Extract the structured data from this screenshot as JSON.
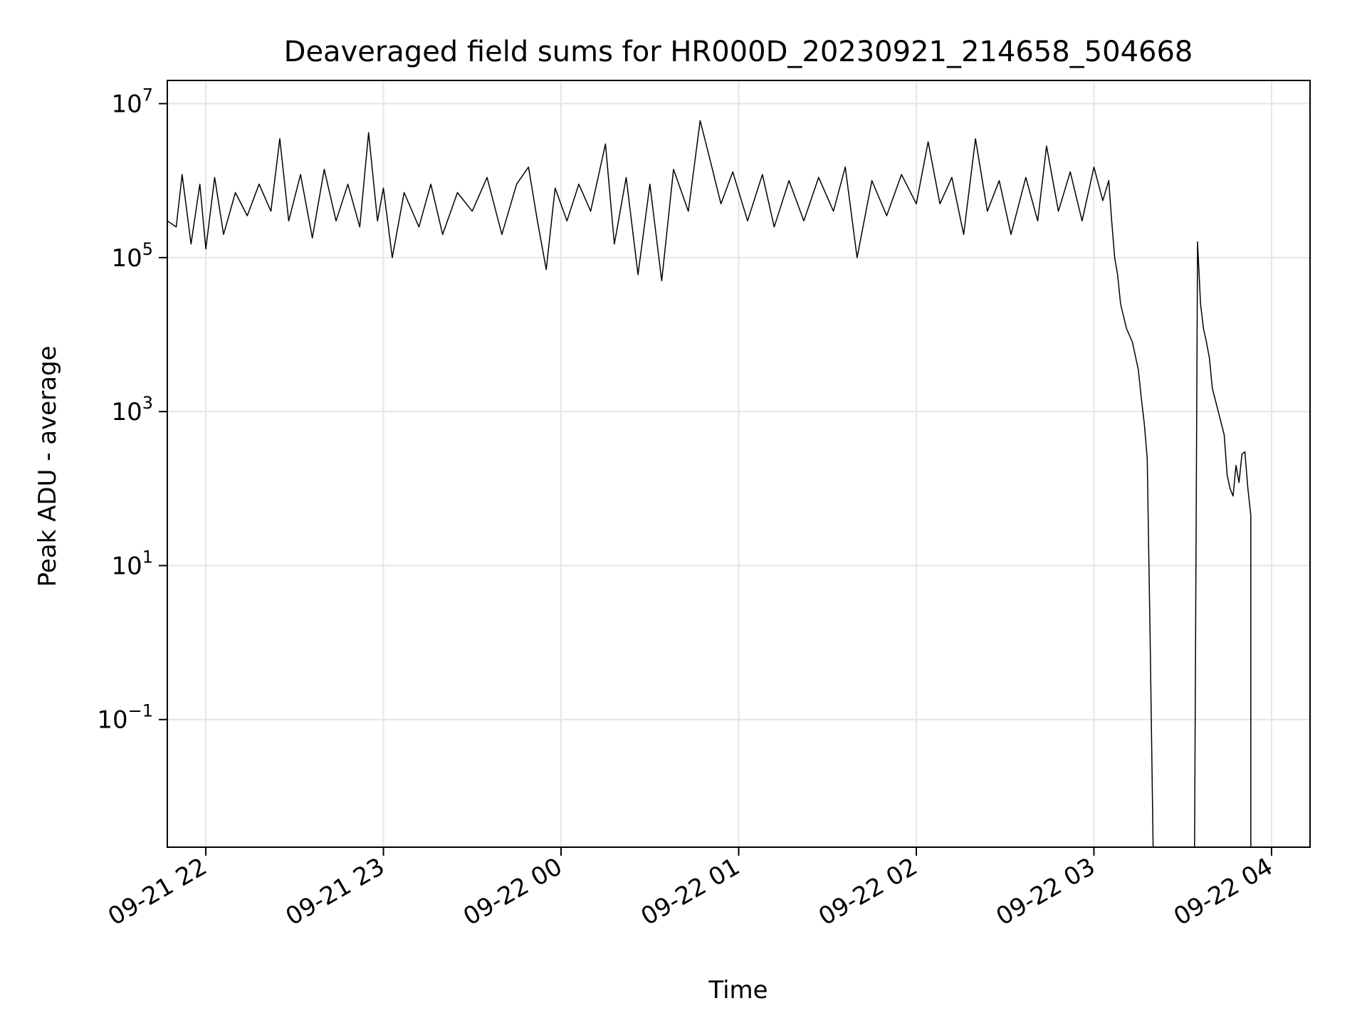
{
  "chart_data": {
    "type": "line",
    "title": "Deaveraged field sums for HR000D_20230921_214658_504668",
    "xlabel": "Time",
    "ylabel": "Peak ADU - average",
    "yscale": "log",
    "xlim": [
      "2023-09-21 21:47",
      "2023-09-22 04:13"
    ],
    "ylim": [
      0.0022,
      20000000
    ],
    "x_ticks": [
      {
        "value": "2023-09-21 22:00",
        "label": "09-21 22"
      },
      {
        "value": "2023-09-21 23:00",
        "label": "09-21 23"
      },
      {
        "value": "2023-09-22 00:00",
        "label": "09-22 00"
      },
      {
        "value": "2023-09-22 01:00",
        "label": "09-22 01"
      },
      {
        "value": "2023-09-22 02:00",
        "label": "09-22 02"
      },
      {
        "value": "2023-09-22 03:00",
        "label": "09-22 03"
      },
      {
        "value": "2023-09-22 04:00",
        "label": "09-22 04"
      }
    ],
    "y_ticks": [
      {
        "value": 10000000,
        "base": "10",
        "exp": "7"
      },
      {
        "value": 100000,
        "base": "10",
        "exp": "5"
      },
      {
        "value": 1000,
        "base": "10",
        "exp": "3"
      },
      {
        "value": 10,
        "base": "10",
        "exp": "1"
      },
      {
        "value": 0.1,
        "base": "10",
        "exp": "−1"
      }
    ],
    "grid": true,
    "line_color": "#000000",
    "grid_color": "#e6e6e6",
    "series": [
      {
        "points": [
          [
            "2023-09-21 21:47",
            300000
          ],
          [
            "2023-09-21 21:50",
            250000
          ],
          [
            "2023-09-21 21:52",
            1200000
          ],
          [
            "2023-09-21 21:55",
            150000
          ],
          [
            "2023-09-21 21:58",
            900000
          ],
          [
            "2023-09-21 22:00",
            130000
          ],
          [
            "2023-09-21 22:03",
            1100000
          ],
          [
            "2023-09-21 22:06",
            200000
          ],
          [
            "2023-09-21 22:10",
            700000
          ],
          [
            "2023-09-21 22:14",
            350000
          ],
          [
            "2023-09-21 22:18",
            900000
          ],
          [
            "2023-09-21 22:22",
            400000
          ],
          [
            "2023-09-21 22:25",
            3500000
          ],
          [
            "2023-09-21 22:28",
            300000
          ],
          [
            "2023-09-21 22:32",
            1200000
          ],
          [
            "2023-09-21 22:36",
            180000
          ],
          [
            "2023-09-21 22:40",
            1400000
          ],
          [
            "2023-09-21 22:44",
            300000
          ],
          [
            "2023-09-21 22:48",
            900000
          ],
          [
            "2023-09-21 22:52",
            250000
          ],
          [
            "2023-09-21 22:55",
            4200000
          ],
          [
            "2023-09-21 22:58",
            300000
          ],
          [
            "2023-09-21 23:00",
            800000
          ],
          [
            "2023-09-21 23:03",
            100000
          ],
          [
            "2023-09-21 23:07",
            700000
          ],
          [
            "2023-09-21 23:12",
            250000
          ],
          [
            "2023-09-21 23:16",
            900000
          ],
          [
            "2023-09-21 23:20",
            200000
          ],
          [
            "2023-09-21 23:25",
            700000
          ],
          [
            "2023-09-21 23:30",
            400000
          ],
          [
            "2023-09-21 23:35",
            1100000
          ],
          [
            "2023-09-21 23:40",
            200000
          ],
          [
            "2023-09-21 23:45",
            900000
          ],
          [
            "2023-09-21 23:49",
            1500000
          ],
          [
            "2023-09-21 23:52",
            300000
          ],
          [
            "2023-09-21 23:55",
            70000
          ],
          [
            "2023-09-21 23:58",
            800000
          ],
          [
            "2023-09-22 00:02",
            300000
          ],
          [
            "2023-09-22 00:06",
            900000
          ],
          [
            "2023-09-22 00:10",
            400000
          ],
          [
            "2023-09-22 00:15",
            3000000
          ],
          [
            "2023-09-22 00:18",
            150000
          ],
          [
            "2023-09-22 00:22",
            1100000
          ],
          [
            "2023-09-22 00:26",
            60000
          ],
          [
            "2023-09-22 00:30",
            900000
          ],
          [
            "2023-09-22 00:34",
            50000
          ],
          [
            "2023-09-22 00:38",
            1400000
          ],
          [
            "2023-09-22 00:43",
            400000
          ],
          [
            "2023-09-22 00:47",
            6000000
          ],
          [
            "2023-09-22 00:50",
            2100000
          ],
          [
            "2023-09-22 00:54",
            500000
          ],
          [
            "2023-09-22 00:58",
            1300000
          ],
          [
            "2023-09-22 01:03",
            300000
          ],
          [
            "2023-09-22 01:08",
            1200000
          ],
          [
            "2023-09-22 01:12",
            250000
          ],
          [
            "2023-09-22 01:17",
            1000000
          ],
          [
            "2023-09-22 01:22",
            300000
          ],
          [
            "2023-09-22 01:27",
            1100000
          ],
          [
            "2023-09-22 01:32",
            400000
          ],
          [
            "2023-09-22 01:36",
            1500000
          ],
          [
            "2023-09-22 01:40",
            100000
          ],
          [
            "2023-09-22 01:45",
            1000000
          ],
          [
            "2023-09-22 01:50",
            350000
          ],
          [
            "2023-09-22 01:55",
            1200000
          ],
          [
            "2023-09-22 02:00",
            500000
          ],
          [
            "2023-09-22 02:04",
            3200000
          ],
          [
            "2023-09-22 02:08",
            500000
          ],
          [
            "2023-09-22 02:12",
            1100000
          ],
          [
            "2023-09-22 02:16",
            200000
          ],
          [
            "2023-09-22 02:20",
            3500000
          ],
          [
            "2023-09-22 02:24",
            400000
          ],
          [
            "2023-09-22 02:28",
            1000000
          ],
          [
            "2023-09-22 02:32",
            200000
          ],
          [
            "2023-09-22 02:37",
            1100000
          ],
          [
            "2023-09-22 02:41",
            300000
          ],
          [
            "2023-09-22 02:44",
            2800000
          ],
          [
            "2023-09-22 02:48",
            400000
          ],
          [
            "2023-09-22 02:52",
            1300000
          ],
          [
            "2023-09-22 02:56",
            300000
          ],
          [
            "2023-09-22 03:00",
            1500000
          ],
          [
            "2023-09-22 03:03",
            550000
          ],
          [
            "2023-09-22 03:05",
            1000000
          ],
          [
            "2023-09-22 03:06",
            300000
          ],
          [
            "2023-09-22 03:07",
            100000
          ],
          [
            "2023-09-22 03:08",
            60000
          ],
          [
            "2023-09-22 03:09",
            25000
          ],
          [
            "2023-09-22 03:11",
            12000
          ],
          [
            "2023-09-22 03:13",
            8000
          ],
          [
            "2023-09-22 03:15",
            3500
          ],
          [
            "2023-09-22 03:16",
            1500
          ],
          [
            "2023-09-22 03:17",
            700
          ],
          [
            "2023-09-22 03:18",
            250
          ],
          [
            "2023-09-22 03:19",
            1
          ],
          [
            "2023-09-22 03:20",
            0.0022
          ]
        ]
      },
      {
        "points": [
          [
            "2023-09-22 03:34",
            0.0022
          ],
          [
            "2023-09-22 03:35",
            160000
          ],
          [
            "2023-09-22 03:36",
            25000
          ],
          [
            "2023-09-22 03:37",
            12000
          ],
          [
            "2023-09-22 03:38",
            8000
          ],
          [
            "2023-09-22 03:39",
            5000
          ],
          [
            "2023-09-22 03:40",
            2000
          ],
          [
            "2023-09-22 03:42",
            1000
          ],
          [
            "2023-09-22 03:44",
            500
          ],
          [
            "2023-09-22 03:45",
            150
          ],
          [
            "2023-09-22 03:46",
            100
          ],
          [
            "2023-09-22 03:47",
            80
          ],
          [
            "2023-09-22 03:48",
            200
          ],
          [
            "2023-09-22 03:49",
            120
          ],
          [
            "2023-09-22 03:50",
            280
          ],
          [
            "2023-09-22 03:51",
            300
          ],
          [
            "2023-09-22 03:52",
            100
          ],
          [
            "2023-09-22 03:53",
            45
          ],
          [
            "2023-09-22 03:53",
            0.0022
          ]
        ]
      }
    ]
  }
}
